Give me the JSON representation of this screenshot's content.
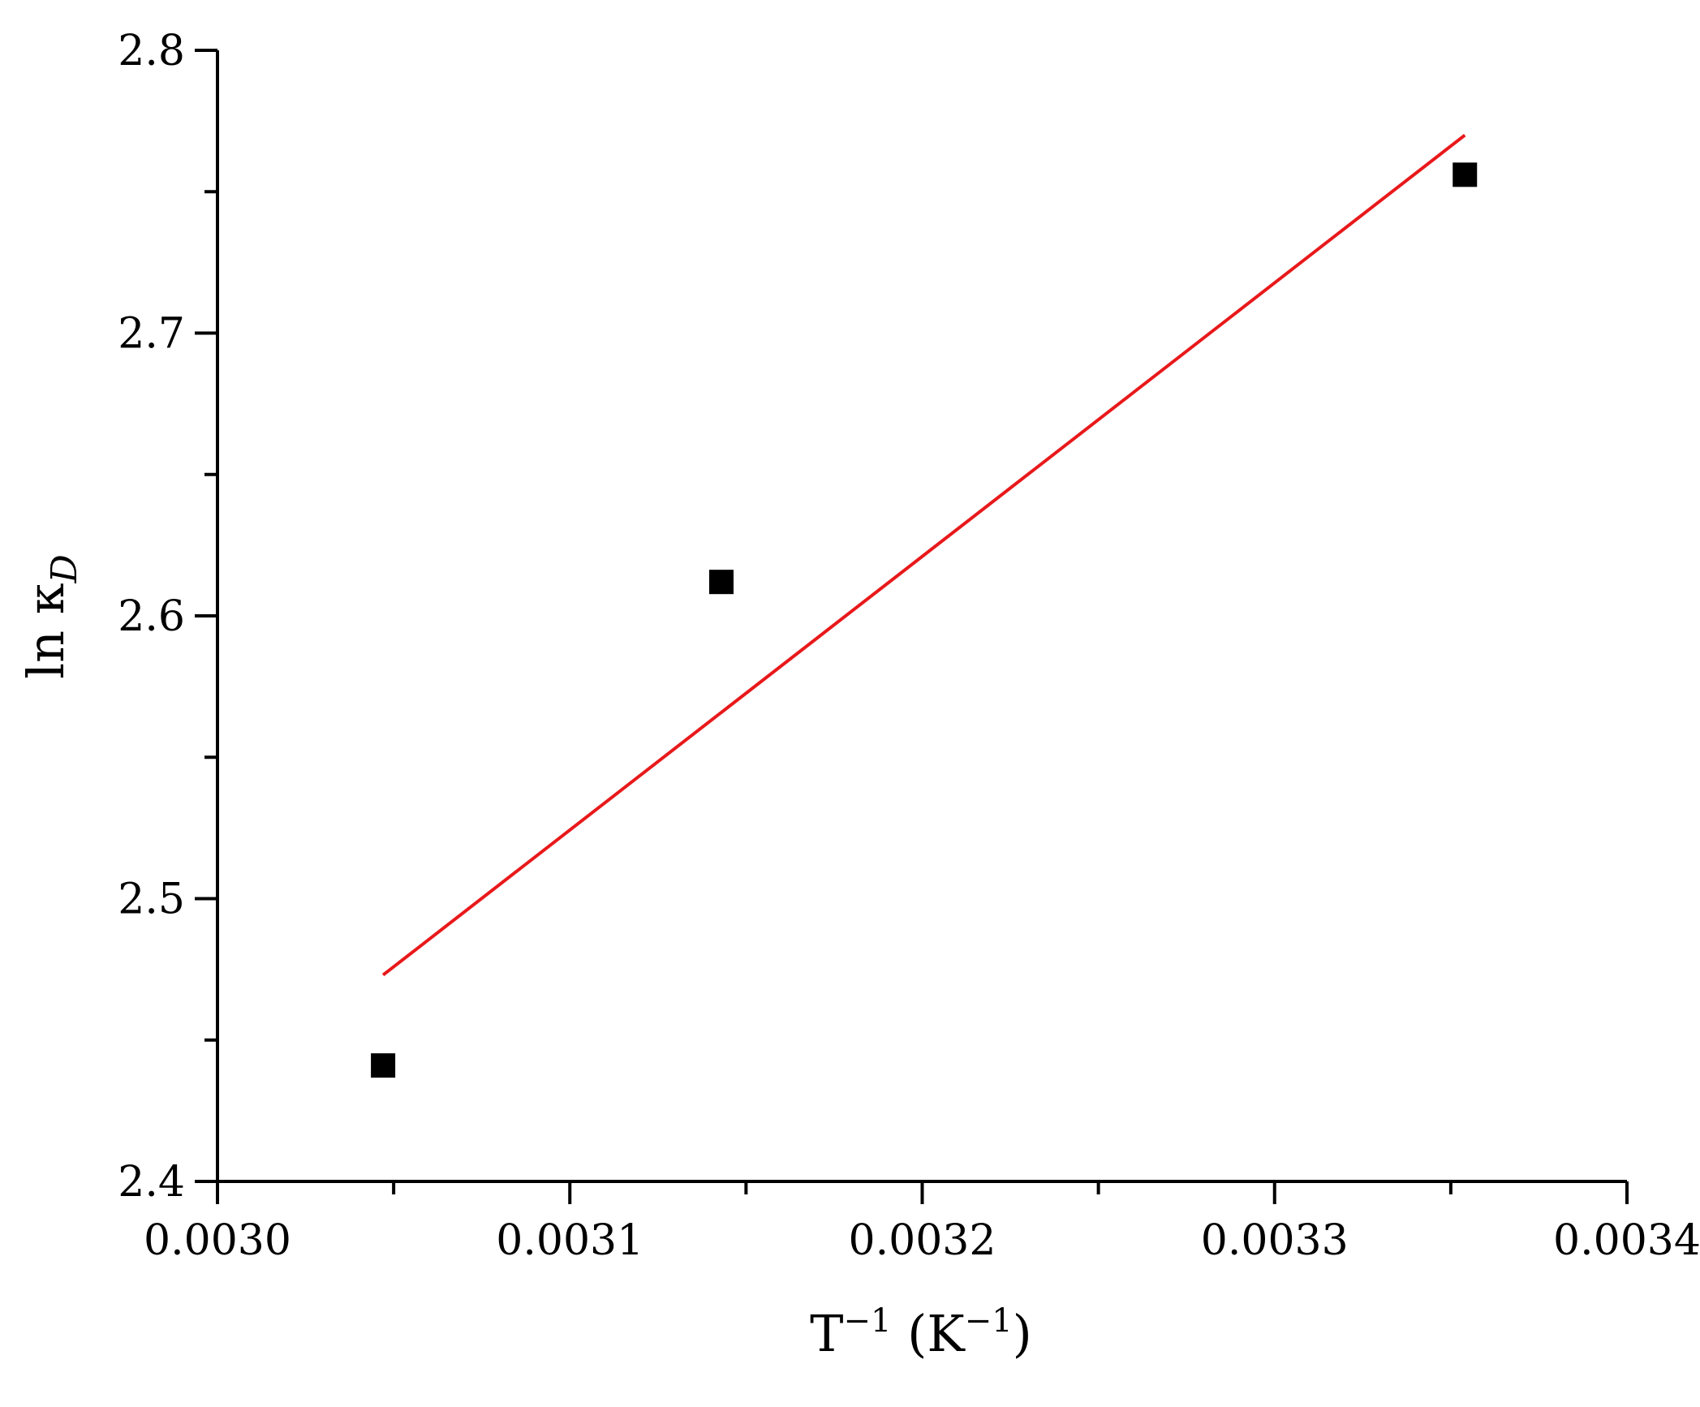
{
  "chart_data": {
    "type": "scatter",
    "title": "",
    "xlabel_main": "T",
    "xlabel_sup": "−1",
    "xlabel_unit_open": " (K",
    "xlabel_unit_sup": "−1",
    "xlabel_unit_close": ")",
    "ylabel_main": "ln κ",
    "ylabel_sub": "D",
    "xlim": [
      0.003,
      0.0034
    ],
    "ylim": [
      2.4,
      2.8
    ],
    "x_major_ticks": [
      0.003,
      0.0031,
      0.0032,
      0.0033,
      0.0034
    ],
    "x_tick_labels": [
      "0.0030",
      "0.0031",
      "0.0032",
      "0.0033",
      "0.0034"
    ],
    "x_minor_ticks": [
      0.00305,
      0.00315,
      0.00325,
      0.00335
    ],
    "y_major_ticks": [
      2.4,
      2.5,
      2.6,
      2.7,
      2.8
    ],
    "y_tick_labels": [
      "2.4",
      "2.5",
      "2.6",
      "2.7",
      "2.8"
    ],
    "y_minor_ticks": [
      2.45,
      2.55,
      2.65,
      2.75
    ],
    "grid": false,
    "series": [
      {
        "type": "scatter",
        "marker": "square",
        "color": "#000000",
        "x": [
          0.003047,
          0.003143,
          0.003354
        ],
        "y": [
          2.441,
          2.612,
          2.756
        ]
      },
      {
        "type": "line",
        "color": "#e8191b",
        "x": [
          0.003047,
          0.003354
        ],
        "y": [
          2.473,
          2.77
        ]
      }
    ]
  }
}
